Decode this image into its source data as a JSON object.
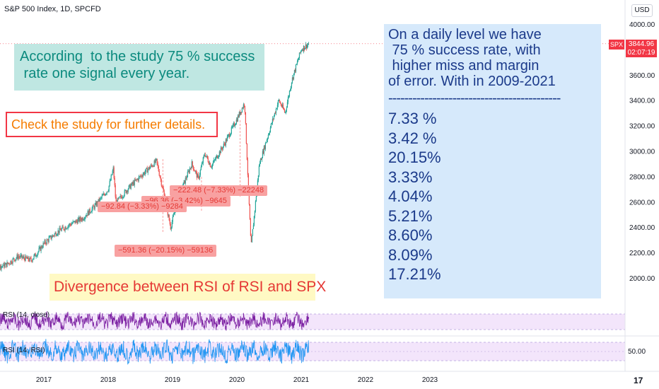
{
  "header": {
    "symbol": "S&P 500 Index, 1D, SPCFD",
    "currency": "USD"
  },
  "price_tag": {
    "symbol": "SPX",
    "value": "3844.96",
    "countdown": "02:07:19"
  },
  "notes": {
    "teal": [
      "According  to the study 75 % success",
      " rate one signal every year."
    ],
    "orange": "Check the study for further details.",
    "yellow": "Divergence between RSI of RSI and SPX",
    "blue_lines": [
      "On a daily level we have",
      " 75 % success rate, with",
      " higher miss and margin",
      "of error. With in 2009-2021"
    ],
    "blue_divider": "-------------------------------------------",
    "blue_rates": [
      "7.33 %",
      "3.42 %",
      "20.15%",
      "3.33%",
      "4.04%",
      "5.21%",
      "8.60%",
      "8.09%",
      "17.21%"
    ]
  },
  "measures": [
    "−222.48 (−7.33%) −22248",
    "−96.36 (−3.42%) −9645",
    "−92.84 (−3.33%) −9284",
    "−591.36 (−20.15%) −59136"
  ],
  "rsi": {
    "label1": "RSI (14, close)",
    "label2": "RSI (14, RSI)",
    "level": "50.00"
  },
  "brand": "17",
  "colors": {
    "candle_up": "#26a69a",
    "candle_down": "#ef5350",
    "rsi1": "#7b1fa2",
    "rsi2": "#2196f3",
    "band": "#f3e5fb"
  },
  "chart_data": {
    "type": "line",
    "title": "S&P 500 Index, 1D, SPCFD",
    "x_ticks": [
      "2017",
      "2018",
      "2019",
      "2020",
      "2021",
      "2022",
      "2023"
    ],
    "y_ticks": [
      "4000.00",
      "3800.00",
      "3600.00",
      "3400.00",
      "3200.00",
      "3000.00",
      "2800.00",
      "2600.00",
      "2400.00",
      "2200.00",
      "2000.00"
    ],
    "ylim": [
      1900,
      4050
    ],
    "last_price": 3844.96,
    "series": [
      {
        "x": [
          2016.0,
          2016.2,
          2016.4,
          2016.6,
          2016.8,
          2016.9,
          2017.0,
          2017.2,
          2017.4,
          2017.6,
          2017.8,
          2018.0,
          2018.08,
          2018.12,
          2018.3,
          2018.5,
          2018.75,
          2018.85,
          2018.97,
          2019.1,
          2019.3,
          2019.4,
          2019.5,
          2019.6,
          2019.8,
          2020.0,
          2020.12,
          2020.22,
          2020.35,
          2020.5,
          2020.65,
          2020.75,
          2020.85,
          2021.0,
          2021.12
        ],
        "values": [
          2000,
          2080,
          2100,
          2170,
          2140,
          2200,
          2270,
          2360,
          2420,
          2470,
          2570,
          2700,
          2860,
          2590,
          2700,
          2800,
          2920,
          2700,
          2400,
          2650,
          2900,
          2780,
          2980,
          2880,
          3050,
          3250,
          3380,
          2240,
          2900,
          3150,
          3400,
          3300,
          3550,
          3800,
          3845
        ]
      }
    ],
    "rsi_series": [
      {
        "name": "RSI (14, close)",
        "level": 50.0
      },
      {
        "name": "RSI (14, RSI)",
        "level": 50.0
      }
    ]
  }
}
